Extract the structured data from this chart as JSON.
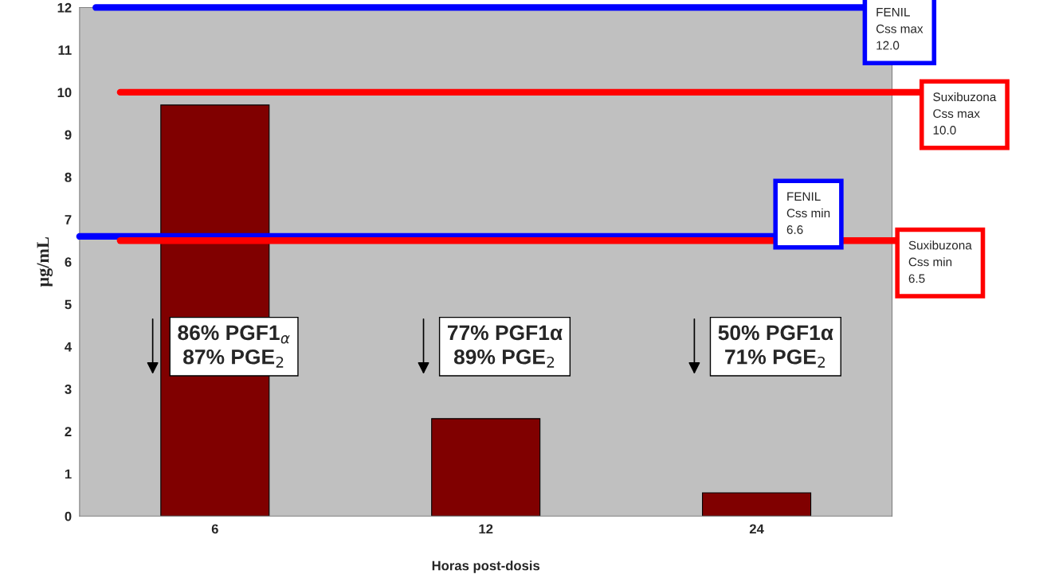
{
  "chart_data": {
    "type": "bar",
    "categories": [
      "6",
      "12",
      "24"
    ],
    "values": [
      9.7,
      2.3,
      0.55
    ],
    "color": "#800000",
    "xlabel": "Horas post-dosis",
    "ylabel": "µg/mL",
    "ylim": [
      0,
      12
    ],
    "yticks": [
      0,
      1,
      2,
      3,
      4,
      5,
      6,
      7,
      8,
      9,
      10,
      11,
      12
    ],
    "grid": false,
    "ref_lines": [
      {
        "axis": "y",
        "value": 12.0,
        "label": "FENIL\nCss max\n12.0",
        "color": "#0000ff"
      },
      {
        "axis": "y",
        "value": 10.0,
        "label": "Suxibuzona\nCss max\n10.0",
        "color": "#ff0000"
      },
      {
        "axis": "y",
        "value": 6.6,
        "label": "FENIL\nCss min\n6.6",
        "color": "#0000ff"
      },
      {
        "axis": "y",
        "value": 6.5,
        "label": "Suxibuzona\nCss min\n6.5",
        "color": "#ff0000"
      }
    ],
    "annotations": [
      "86% PGF1$_{α}$\n87% PGE$_{2}$",
      "77% PGF1α\n89% PGE$_{2}$",
      "50% PGF1α\n71% PGE$_{2}$"
    ]
  }
}
